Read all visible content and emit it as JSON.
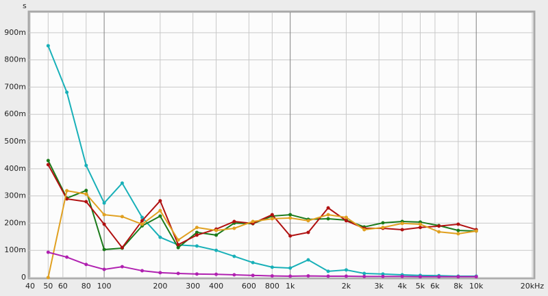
{
  "chart_data": {
    "type": "line",
    "y_unit": "s",
    "x": [
      50,
      63,
      80,
      100,
      125,
      160,
      200,
      250,
      315,
      400,
      500,
      630,
      800,
      1000,
      1250,
      1600,
      2000,
      2500,
      3150,
      4000,
      5000,
      6300,
      8000,
      10000
    ],
    "xlim": [
      40,
      20000
    ],
    "log_x": true,
    "xticks": [
      40,
      50,
      60,
      80,
      100,
      200,
      300,
      400,
      600,
      800,
      {
        "value": 1000,
        "label": "1k"
      },
      {
        "value": 2000,
        "label": "2k"
      },
      {
        "value": 3000,
        "label": "3k"
      },
      {
        "value": 4000,
        "label": "4k"
      },
      {
        "value": 5000,
        "label": "5k"
      },
      {
        "value": 6000,
        "label": "6k"
      },
      {
        "value": 8000,
        "label": "8k"
      },
      {
        "value": 10000,
        "label": "10k"
      },
      {
        "value": 20000,
        "label": "20kHz"
      }
    ],
    "ylim": [
      0,
      0.975
    ],
    "yticks": [
      0,
      {
        "value": 0.1,
        "label": "100m"
      },
      {
        "value": 0.2,
        "label": "200m"
      },
      {
        "value": 0.3,
        "label": "300m"
      },
      {
        "value": 0.4,
        "label": "400m"
      },
      {
        "value": 0.5,
        "label": "500m"
      },
      {
        "value": 0.6,
        "label": "600m"
      },
      {
        "value": 0.7,
        "label": "700m"
      },
      {
        "value": 0.8,
        "label": "800m"
      },
      {
        "value": 0.9,
        "label": "900m"
      }
    ],
    "grid": true,
    "series": [
      {
        "color": "#18b0b8",
        "values": [
          0.852,
          0.681,
          0.412,
          0.274,
          0.347,
          0.221,
          0.148,
          0.12,
          0.116,
          0.1,
          0.078,
          0.055,
          0.038,
          0.035,
          0.065,
          0.023,
          0.028,
          0.015,
          0.013,
          0.01,
          0.008,
          0.007,
          0.005,
          0.005
        ]
      },
      {
        "color": "#1a7a1a",
        "values": [
          0.43,
          0.292,
          0.32,
          0.103,
          0.108,
          0.19,
          0.226,
          0.11,
          0.166,
          0.156,
          0.2,
          0.198,
          0.226,
          0.231,
          0.214,
          0.216,
          0.211,
          0.186,
          0.201,
          0.206,
          0.204,
          0.191,
          0.173,
          0.171
        ]
      },
      {
        "color": "#b01010",
        "values": [
          0.415,
          0.289,
          0.279,
          0.196,
          0.11,
          0.209,
          0.282,
          0.121,
          0.156,
          0.178,
          0.206,
          0.199,
          0.231,
          0.153,
          0.166,
          0.256,
          0.209,
          0.181,
          0.181,
          0.176,
          0.184,
          0.189,
          0.196,
          0.176
        ]
      },
      {
        "color": "#e0a020",
        "values": [
          0,
          0.319,
          0.307,
          0.231,
          0.224,
          0.196,
          0.246,
          0.138,
          0.184,
          0.173,
          0.181,
          0.206,
          0.216,
          0.219,
          0.209,
          0.231,
          0.221,
          0.176,
          0.184,
          0.199,
          0.196,
          0.168,
          0.161,
          0.171
        ]
      },
      {
        "color": "#b020b0",
        "values": [
          0.093,
          0.075,
          0.048,
          0.03,
          0.04,
          0.025,
          0.018,
          0.015,
          0.013,
          0.012,
          0.01,
          0.008,
          0.006,
          0.005,
          0.006,
          0.005,
          0.005,
          0.004,
          0.004,
          0.004,
          0.003,
          0.003,
          0.003,
          0.003
        ]
      }
    ]
  }
}
